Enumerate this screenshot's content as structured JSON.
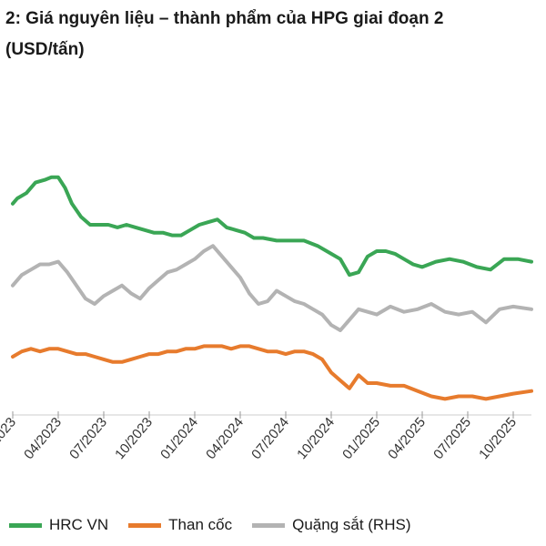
{
  "title": "2: Giá nguyên liệu – thành phẩm của HPG giai đoạn 2",
  "subtitle": "(USD/tấn)",
  "chart_data": {
    "type": "line",
    "title": "2: Giá nguyên liệu – thành phẩm của HPG giai đoạn 2",
    "subtitle": "(USD/tấn)",
    "x_ticks": [
      "2023",
      "04/2023",
      "07/2023",
      "10/2023",
      "01/2024",
      "04/2024",
      "07/2024",
      "10/2024",
      "01/2025",
      "04/2025",
      "07/2025",
      "10/2025"
    ],
    "x_range": [
      0,
      11.4
    ],
    "y_left_range": [
      0,
      100
    ],
    "y_right_range": [
      0,
      100
    ],
    "grid": false,
    "legend_position": "bottom",
    "series": [
      {
        "name": "HRC VN",
        "color": "#3aa655",
        "axis": "left",
        "x": [
          0,
          0.1,
          0.3,
          0.5,
          0.7,
          0.85,
          1.0,
          1.15,
          1.3,
          1.5,
          1.7,
          1.9,
          2.1,
          2.3,
          2.5,
          2.7,
          2.9,
          3.1,
          3.3,
          3.5,
          3.7,
          3.9,
          4.1,
          4.3,
          4.5,
          4.7,
          4.9,
          5.1,
          5.3,
          5.5,
          5.8,
          6.1,
          6.4,
          6.7,
          7.0,
          7.2,
          7.4,
          7.6,
          7.8,
          8.0,
          8.2,
          8.4,
          8.6,
          8.8,
          9.0,
          9.3,
          9.6,
          9.9,
          10.2,
          10.5,
          10.8,
          11.1,
          11.4
        ],
        "y": [
          78,
          80,
          82,
          86,
          87,
          88,
          88,
          84,
          78,
          73,
          70,
          70,
          70,
          69,
          70,
          69,
          68,
          67,
          67,
          66,
          66,
          68,
          70,
          71,
          72,
          69,
          68,
          67,
          65,
          65,
          64,
          64,
          64,
          62,
          59,
          57,
          51,
          52,
          58,
          60,
          60,
          59,
          57,
          55,
          54,
          56,
          57,
          56,
          54,
          53,
          57,
          57,
          56
        ]
      },
      {
        "name": "Than cốc",
        "color": "#e77b2d",
        "axis": "left",
        "x": [
          0,
          0.2,
          0.4,
          0.6,
          0.8,
          1.0,
          1.2,
          1.4,
          1.6,
          1.8,
          2.0,
          2.2,
          2.4,
          2.6,
          2.8,
          3.0,
          3.2,
          3.4,
          3.6,
          3.8,
          4.0,
          4.2,
          4.4,
          4.6,
          4.8,
          5.0,
          5.2,
          5.4,
          5.6,
          5.8,
          6.0,
          6.2,
          6.4,
          6.6,
          6.8,
          7.0,
          7.2,
          7.4,
          7.6,
          7.8,
          8.0,
          8.3,
          8.6,
          8.9,
          9.2,
          9.5,
          9.8,
          10.1,
          10.4,
          10.7,
          11.0,
          11.4
        ],
        "y": [
          20,
          22,
          23,
          22,
          23,
          23,
          22,
          21,
          21,
          20,
          19,
          18,
          18,
          19,
          20,
          21,
          21,
          22,
          22,
          23,
          23,
          24,
          24,
          24,
          23,
          24,
          24,
          23,
          22,
          22,
          21,
          22,
          22,
          21,
          19,
          14,
          11,
          8,
          13,
          10,
          10,
          9,
          9,
          7,
          5,
          4,
          5,
          5,
          4,
          5,
          6,
          7
        ]
      },
      {
        "name": "Quặng sắt (RHS)",
        "color": "#b3b3b3",
        "axis": "right",
        "x": [
          0,
          0.2,
          0.4,
          0.6,
          0.8,
          1.0,
          1.2,
          1.4,
          1.6,
          1.8,
          2.0,
          2.2,
          2.4,
          2.6,
          2.8,
          3.0,
          3.2,
          3.4,
          3.6,
          3.8,
          4.0,
          4.2,
          4.4,
          4.6,
          4.8,
          5.0,
          5.2,
          5.4,
          5.6,
          5.8,
          6.0,
          6.2,
          6.4,
          6.6,
          6.8,
          7.0,
          7.2,
          7.4,
          7.6,
          7.8,
          8.0,
          8.3,
          8.6,
          8.9,
          9.2,
          9.5,
          9.8,
          10.1,
          10.4,
          10.7,
          11.0,
          11.4
        ],
        "y": [
          47,
          51,
          53,
          55,
          55,
          56,
          52,
          47,
          42,
          40,
          43,
          45,
          47,
          44,
          42,
          46,
          49,
          52,
          53,
          55,
          57,
          60,
          62,
          58,
          54,
          50,
          44,
          40,
          41,
          45,
          43,
          41,
          40,
          38,
          36,
          32,
          30,
          34,
          38,
          37,
          36,
          39,
          37,
          38,
          40,
          37,
          36,
          37,
          33,
          38,
          39,
          38
        ]
      }
    ]
  }
}
